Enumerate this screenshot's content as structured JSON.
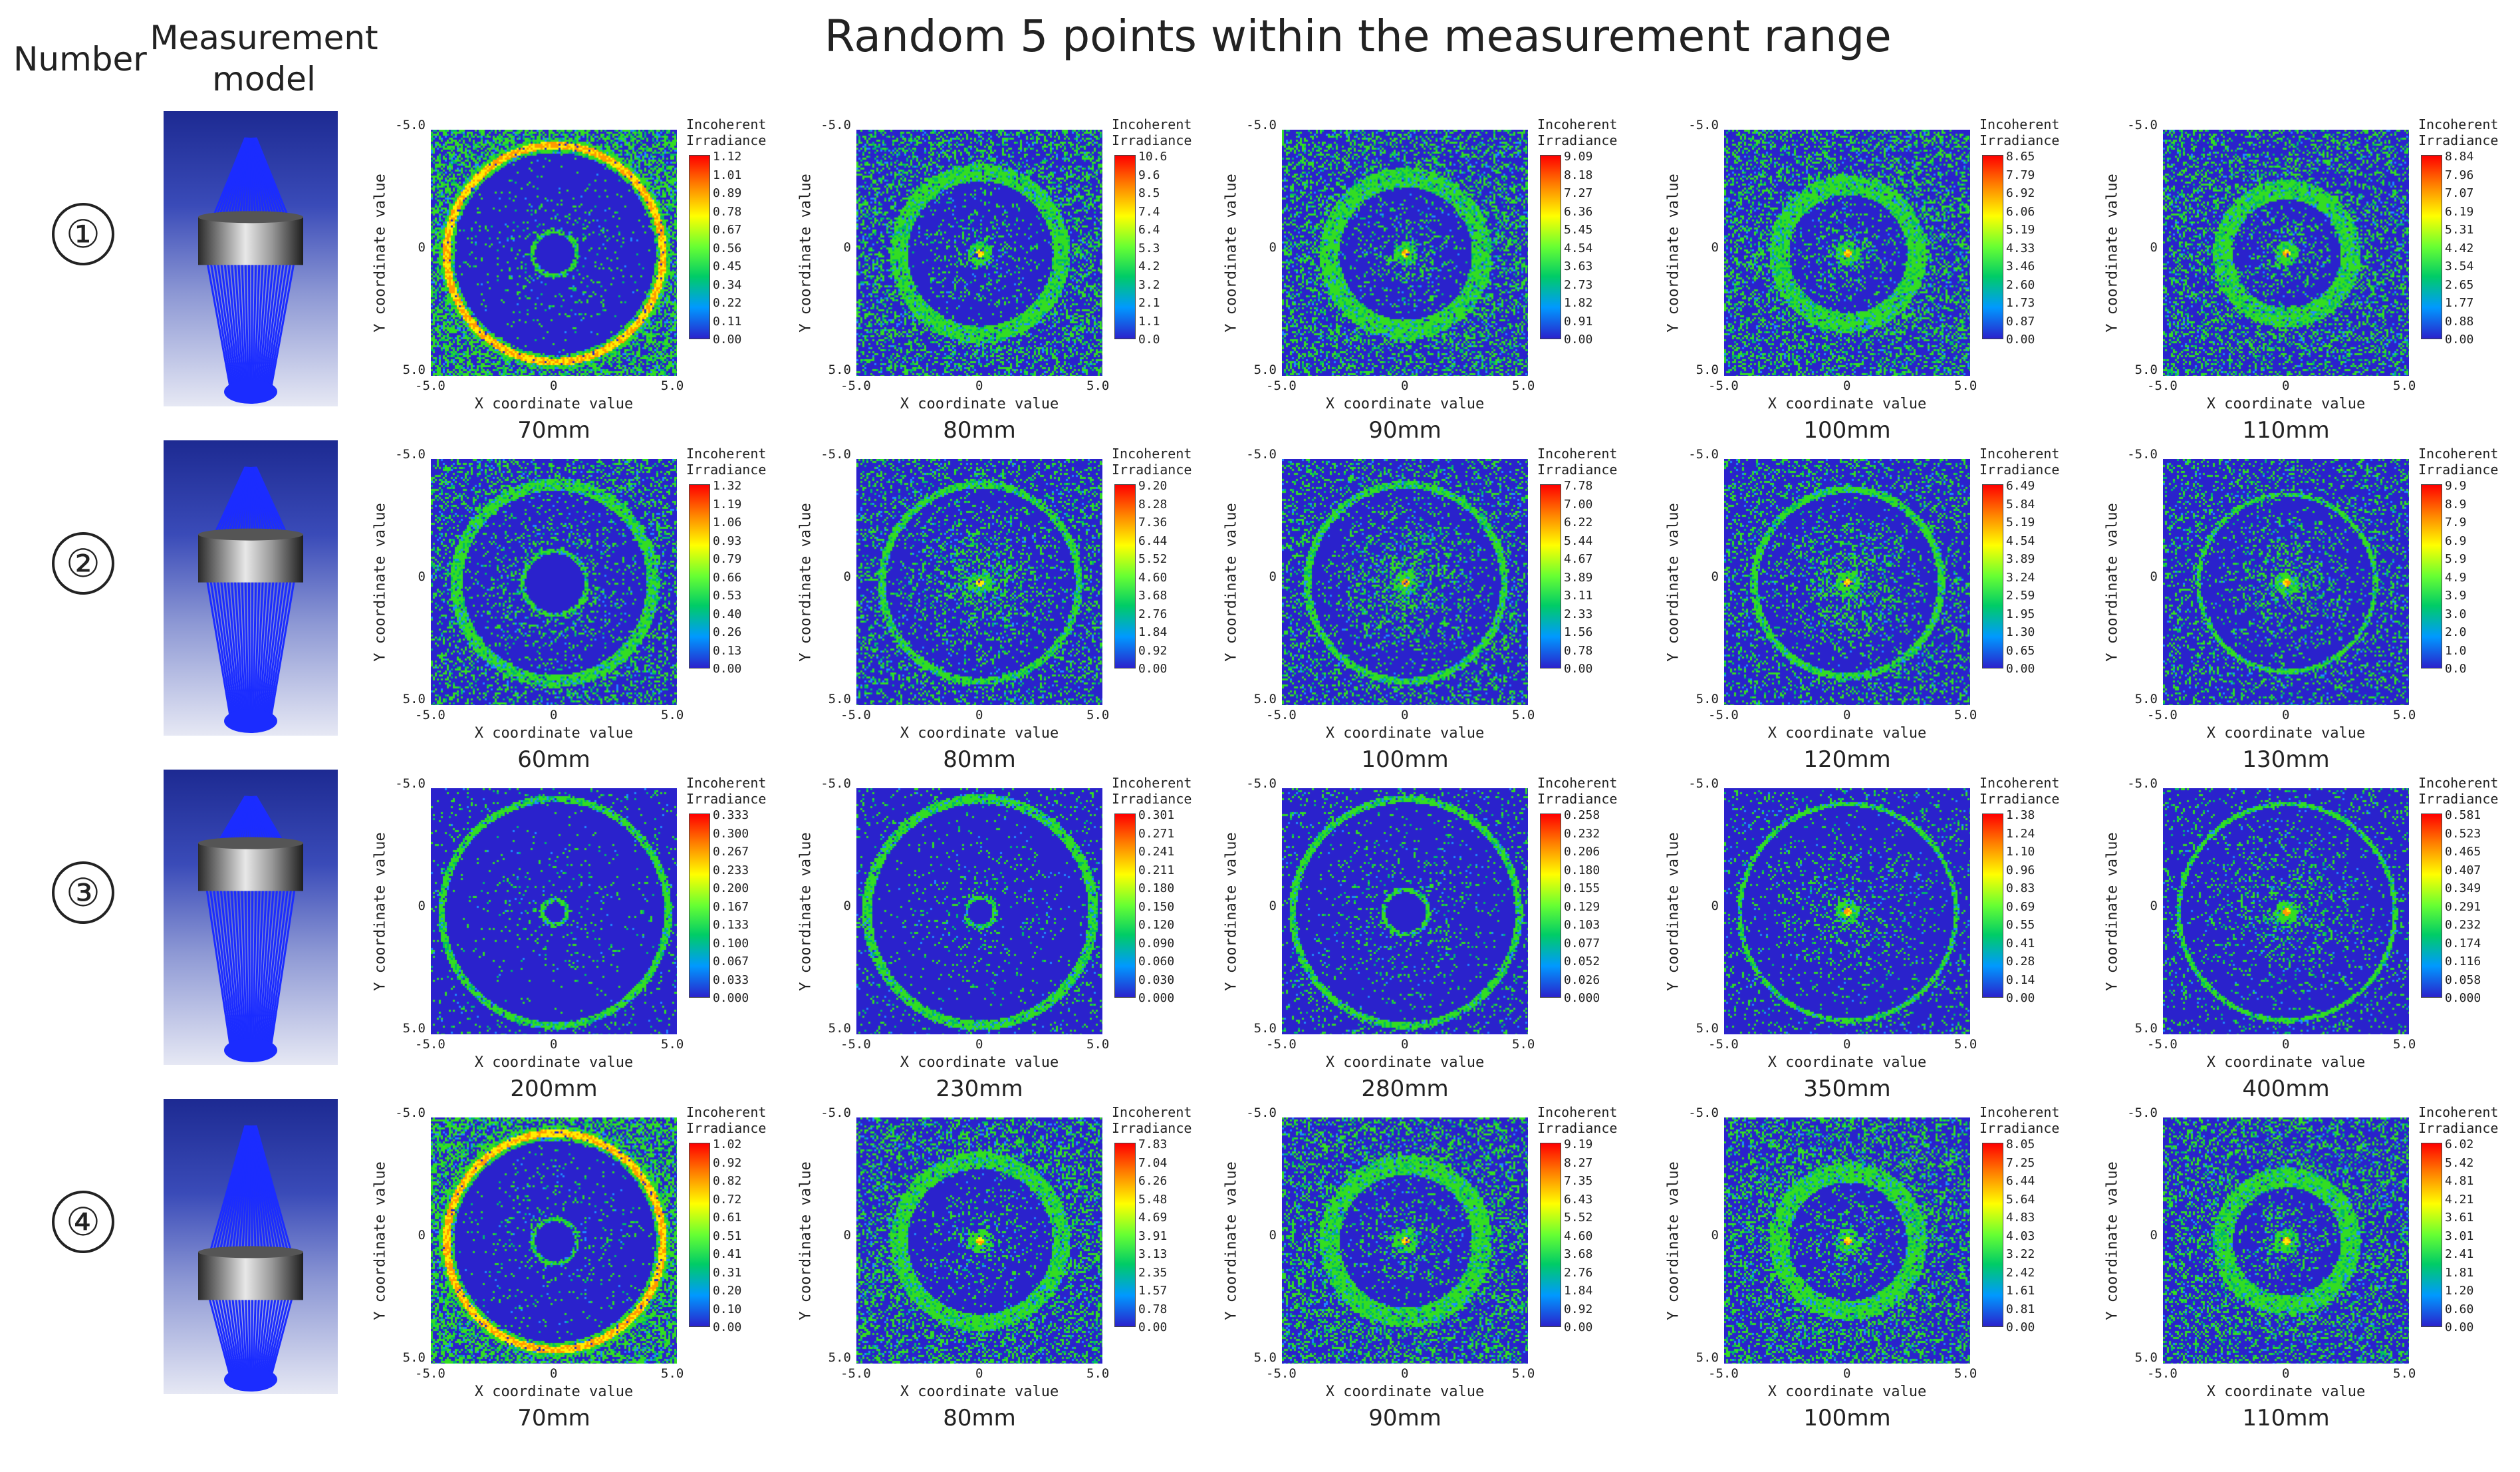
{
  "headers": {
    "number": "Number",
    "model": "Measurement model",
    "title": "Random 5 points within the measurement range"
  },
  "axes": {
    "xlabel": "X coordinate value",
    "ylabel": "Y coordinate value",
    "ticks": [
      "-5.0",
      "0",
      "5.0"
    ],
    "colorbar_title": "Incoherent Irradiance"
  },
  "rows": [
    {
      "number": "①",
      "panels": [
        {
          "distance": "70mm",
          "colorbar": [
            "1.12",
            "1.01",
            "0.89",
            "0.78",
            "0.67",
            "0.56",
            "0.45",
            "0.34",
            "0.22",
            "0.11",
            "0.00"
          ]
        },
        {
          "distance": "80mm",
          "colorbar": [
            "10.6",
            "9.6",
            "8.5",
            "7.4",
            "6.4",
            "5.3",
            "4.2",
            "3.2",
            "2.1",
            "1.1",
            "0.0"
          ]
        },
        {
          "distance": "90mm",
          "colorbar": [
            "9.09",
            "8.18",
            "7.27",
            "6.36",
            "5.45",
            "4.54",
            "3.63",
            "2.73",
            "1.82",
            "0.91",
            "0.00"
          ]
        },
        {
          "distance": "100mm",
          "colorbar": [
            "8.65",
            "7.79",
            "6.92",
            "6.06",
            "5.19",
            "4.33",
            "3.46",
            "2.60",
            "1.73",
            "0.87",
            "0.00"
          ]
        },
        {
          "distance": "110mm",
          "colorbar": [
            "8.84",
            "7.96",
            "7.07",
            "6.19",
            "5.31",
            "4.42",
            "3.54",
            "2.65",
            "1.77",
            "0.88",
            "0.00"
          ]
        }
      ]
    },
    {
      "number": "②",
      "panels": [
        {
          "distance": "60mm",
          "colorbar": [
            "1.32",
            "1.19",
            "1.06",
            "0.93",
            "0.79",
            "0.66",
            "0.53",
            "0.40",
            "0.26",
            "0.13",
            "0.00"
          ]
        },
        {
          "distance": "80mm",
          "colorbar": [
            "9.20",
            "8.28",
            "7.36",
            "6.44",
            "5.52",
            "4.60",
            "3.68",
            "2.76",
            "1.84",
            "0.92",
            "0.00"
          ]
        },
        {
          "distance": "100mm",
          "colorbar": [
            "7.78",
            "7.00",
            "6.22",
            "5.44",
            "4.67",
            "3.89",
            "3.11",
            "2.33",
            "1.56",
            "0.78",
            "0.00"
          ]
        },
        {
          "distance": "120mm",
          "colorbar": [
            "6.49",
            "5.84",
            "5.19",
            "4.54",
            "3.89",
            "3.24",
            "2.59",
            "1.95",
            "1.30",
            "0.65",
            "0.00"
          ]
        },
        {
          "distance": "130mm",
          "colorbar": [
            "9.9",
            "8.9",
            "7.9",
            "6.9",
            "5.9",
            "4.9",
            "3.9",
            "3.0",
            "2.0",
            "1.0",
            "0.0"
          ]
        }
      ]
    },
    {
      "number": "③",
      "panels": [
        {
          "distance": "200mm",
          "colorbar": [
            "0.333",
            "0.300",
            "0.267",
            "0.233",
            "0.200",
            "0.167",
            "0.133",
            "0.100",
            "0.067",
            "0.033",
            "0.000"
          ]
        },
        {
          "distance": "230mm",
          "colorbar": [
            "0.301",
            "0.271",
            "0.241",
            "0.211",
            "0.180",
            "0.150",
            "0.120",
            "0.090",
            "0.060",
            "0.030",
            "0.000"
          ]
        },
        {
          "distance": "280mm",
          "colorbar": [
            "0.258",
            "0.232",
            "0.206",
            "0.180",
            "0.155",
            "0.129",
            "0.103",
            "0.077",
            "0.052",
            "0.026",
            "0.000"
          ]
        },
        {
          "distance": "350mm",
          "colorbar": [
            "1.38",
            "1.24",
            "1.10",
            "0.96",
            "0.83",
            "0.69",
            "0.55",
            "0.41",
            "0.28",
            "0.14",
            "0.00"
          ]
        },
        {
          "distance": "400mm",
          "colorbar": [
            "0.581",
            "0.523",
            "0.465",
            "0.407",
            "0.349",
            "0.291",
            "0.232",
            "0.174",
            "0.116",
            "0.058",
            "0.000"
          ]
        }
      ]
    },
    {
      "number": "④",
      "panels": [
        {
          "distance": "70mm",
          "colorbar": [
            "1.02",
            "0.92",
            "0.82",
            "0.72",
            "0.61",
            "0.51",
            "0.41",
            "0.31",
            "0.20",
            "0.10",
            "0.00"
          ]
        },
        {
          "distance": "80mm",
          "colorbar": [
            "7.83",
            "7.04",
            "6.26",
            "5.48",
            "4.69",
            "3.91",
            "3.13",
            "2.35",
            "1.57",
            "0.78",
            "0.00"
          ]
        },
        {
          "distance": "90mm",
          "colorbar": [
            "9.19",
            "8.27",
            "7.35",
            "6.43",
            "5.52",
            "4.60",
            "3.68",
            "2.76",
            "1.84",
            "0.92",
            "0.00"
          ]
        },
        {
          "distance": "100mm",
          "colorbar": [
            "8.05",
            "7.25",
            "6.44",
            "5.64",
            "4.83",
            "4.03",
            "3.22",
            "2.42",
            "1.61",
            "0.81",
            "0.00"
          ]
        },
        {
          "distance": "110mm",
          "colorbar": [
            "6.02",
            "5.42",
            "4.81",
            "4.21",
            "3.61",
            "3.01",
            "2.41",
            "1.81",
            "1.20",
            "0.60",
            "0.00"
          ]
        }
      ]
    }
  ]
}
